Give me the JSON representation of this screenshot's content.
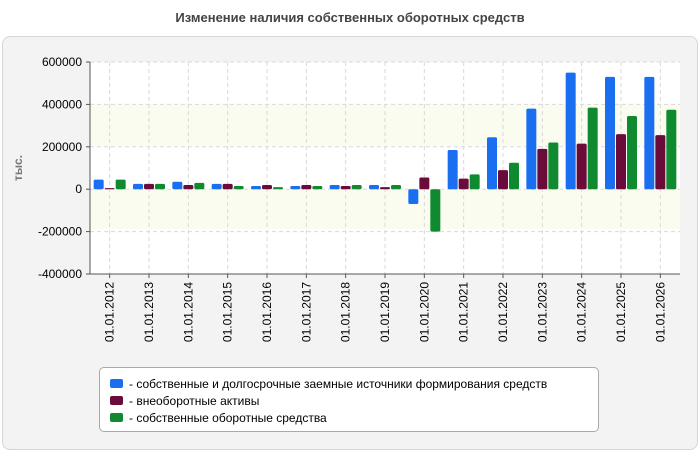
{
  "chart_data": {
    "type": "bar",
    "title": "Изменение наличия собственных оборотных средств",
    "ylabel": "тыс.",
    "xlabel": "",
    "ylim": [
      -400000,
      600000
    ],
    "yticks": [
      600000,
      400000,
      200000,
      0,
      -200000,
      -400000
    ],
    "ytick_labels": [
      "600000",
      "400000",
      "200000",
      "0",
      "-200000",
      "-400000"
    ],
    "grid": true,
    "legend_position": "bottom",
    "categories": [
      "01.01.2012",
      "01.01.2013",
      "01.01.2014",
      "01.01.2015",
      "01.01.2016",
      "01.01.2017",
      "01.01.2018",
      "01.01.2019",
      "01.01.2020",
      "01.01.2021",
      "01.01.2022",
      "01.01.2023",
      "01.01.2024",
      "01.01.2025",
      "01.01.2026"
    ],
    "series": [
      {
        "name": "собственные и долгосрочные заемные источники формирования средств",
        "color": "#1a6ef0",
        "values": [
          45000,
          25000,
          35000,
          25000,
          15000,
          15000,
          20000,
          20000,
          -70000,
          185000,
          245000,
          380000,
          550000,
          530000,
          530000
        ]
      },
      {
        "name": "внеоборотные активы",
        "color": "#6b0b3a",
        "values": [
          5000,
          25000,
          20000,
          25000,
          20000,
          20000,
          15000,
          10000,
          55000,
          50000,
          90000,
          190000,
          215000,
          260000,
          255000
        ]
      },
      {
        "name": "собственные оборотные средства",
        "color": "#0f8a2e",
        "values": [
          45000,
          25000,
          30000,
          15000,
          10000,
          15000,
          20000,
          20000,
          -200000,
          70000,
          125000,
          220000,
          385000,
          345000,
          375000
        ]
      }
    ]
  },
  "legend": {
    "items": [
      {
        "label": "- собственные и долгосрочные заемные источники формирования средств",
        "color": "#1a6ef0"
      },
      {
        "label": "- внеоборотные активы",
        "color": "#6b0b3a"
      },
      {
        "label": "- собственные оборотные средства",
        "color": "#0f8a2e"
      }
    ]
  }
}
